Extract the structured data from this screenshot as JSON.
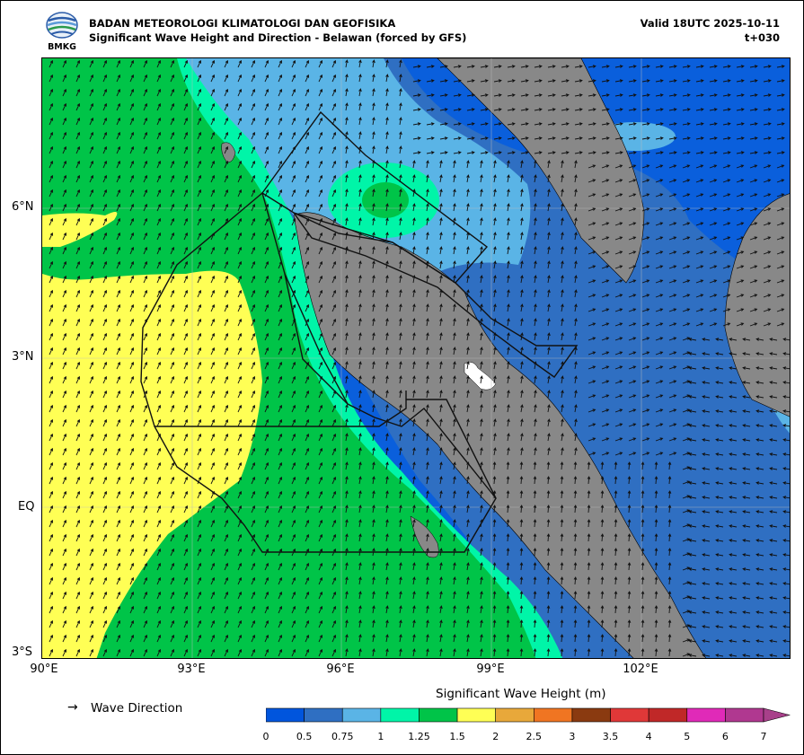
{
  "header": {
    "org": "BADAN METEOROLOGI KLIMATOLOGI DAN GEOFISIKA",
    "subtitle": "Significant Wave Height and Direction - Belawan (forced by GFS)",
    "valid": "Valid 18UTC 2025-10-11",
    "lead": "t+030"
  },
  "logo": {
    "text": "BMKG",
    "icon": "bmkg-logo-icon"
  },
  "axes": {
    "y_labels": [
      "6°N",
      "3°N",
      "EQ",
      "3°S"
    ],
    "x_labels": [
      "90°E",
      "93°E",
      "96°E",
      "99°E",
      "102°E"
    ],
    "lon_range": [
      90,
      105
    ],
    "lat_range": [
      -3,
      9
    ]
  },
  "legend": {
    "arrow": "→",
    "label": "Wave Direction"
  },
  "colorbar": {
    "title": "Significant Wave Height (m)",
    "ticks": [
      "0",
      "0.5",
      "0.75",
      "1",
      "1.25",
      "1.5",
      "2",
      "2.5",
      "3",
      "3.5",
      "4",
      "5",
      "6",
      "7"
    ],
    "colors": [
      "#0055dd",
      "#2f6fc2",
      "#5ab4e6",
      "#00f5a8",
      "#00c448",
      "#ffff55",
      "#e8a83a",
      "#f07522",
      "#8a3a10",
      "#e03838",
      "#c02828",
      "#e02ab8",
      "#b03890"
    ]
  },
  "colors": {
    "land": "#888888",
    "island": "#ffffff"
  }
}
